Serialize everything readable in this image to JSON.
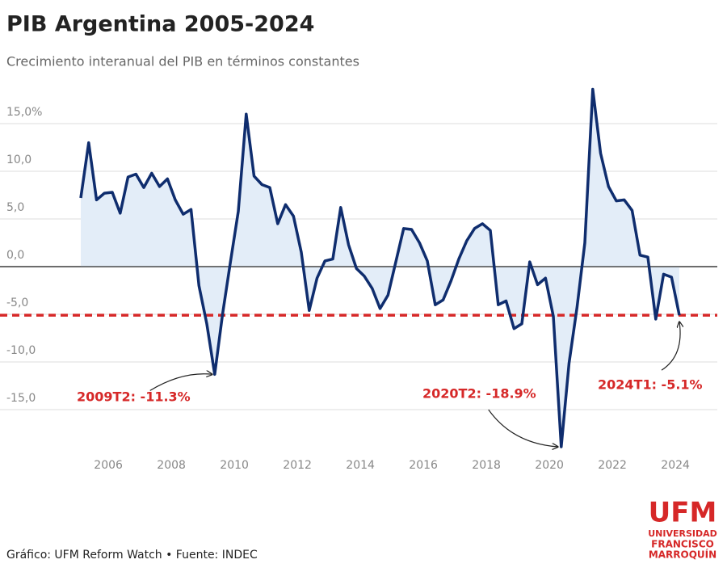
{
  "chart_data": {
    "type": "area-line",
    "title": "PIB Argentina 2005-2024",
    "subtitle": "Crecimiento interanual del PIB en términos constantes",
    "source": "Gráfico: UFM Reform Watch • Fuente: INDEC",
    "logo": {
      "name": "UFM",
      "lines": [
        "UNIVERSIDAD",
        "FRANCISCO",
        "MARROQUÍN"
      ]
    },
    "x": [
      2005.125,
      2005.375,
      2005.625,
      2005.875,
      2006.125,
      2006.375,
      2006.625,
      2006.875,
      2007.125,
      2007.375,
      2007.625,
      2007.875,
      2008.125,
      2008.375,
      2008.625,
      2008.875,
      2009.125,
      2009.375,
      2009.625,
      2009.875,
      2010.125,
      2010.375,
      2010.625,
      2010.875,
      2011.125,
      2011.375,
      2011.625,
      2011.875,
      2012.125,
      2012.375,
      2012.625,
      2012.875,
      2013.125,
      2013.375,
      2013.625,
      2013.875,
      2014.125,
      2014.375,
      2014.625,
      2014.875,
      2015.125,
      2015.375,
      2015.625,
      2015.875,
      2016.125,
      2016.375,
      2016.625,
      2016.875,
      2017.125,
      2017.375,
      2017.625,
      2017.875,
      2018.125,
      2018.375,
      2018.625,
      2018.875,
      2019.125,
      2019.375,
      2019.625,
      2019.875,
      2020.125,
      2020.375,
      2020.625,
      2020.875,
      2021.125,
      2021.375,
      2021.625,
      2021.875,
      2022.125,
      2022.375,
      2022.625,
      2022.875,
      2023.125,
      2023.375,
      2023.625,
      2023.875,
      2024.125
    ],
    "series": [
      {
        "color": "#0f2d6e",
        "fill": "#e3edf8",
        "values": [
          7.2,
          13.0,
          7.0,
          7.7,
          7.8,
          5.6,
          9.4,
          9.7,
          8.3,
          9.8,
          8.4,
          9.2,
          7.0,
          5.5,
          6.0,
          -2.0,
          -6.0,
          -11.3,
          -5.0,
          0.5,
          5.8,
          16.0,
          9.5,
          8.6,
          8.3,
          4.5,
          6.5,
          5.3,
          1.5,
          -4.6,
          -1.2,
          0.6,
          0.8,
          6.2,
          2.3,
          -0.2,
          -1.0,
          -2.3,
          -4.4,
          -3.0,
          0.5,
          4.0,
          3.9,
          2.5,
          0.6,
          -4.0,
          -3.5,
          -1.5,
          0.8,
          2.7,
          4.0,
          4.5,
          3.8,
          -4.0,
          -3.6,
          -6.5,
          -6.0,
          0.5,
          -1.9,
          -1.2,
          -5.2,
          -18.9,
          -10.1,
          -4.3,
          2.5,
          18.6,
          11.9,
          8.4,
          6.9,
          7.0,
          5.9,
          1.2,
          1.0,
          -5.5,
          -0.8,
          -1.1,
          -5.1
        ]
      }
    ],
    "xlim": [
      2003.125,
      2025.125
    ],
    "xticks": [
      2006,
      2008,
      2010,
      2012,
      2014,
      2016,
      2018,
      2020,
      2022,
      2024
    ],
    "ylim": [
      -20,
      20
    ],
    "yticks": [
      {
        "value": 15,
        "label": "15,0%"
      },
      {
        "value": 10,
        "label": "10,0"
      },
      {
        "value": 5,
        "label": "5,0"
      },
      {
        "value": 0,
        "label": "0,0"
      },
      {
        "value": -5,
        "label": "-5,0"
      },
      {
        "value": -10,
        "label": "-10,0"
      },
      {
        "value": -15,
        "label": "-15,0"
      }
    ],
    "grid": true,
    "reference_line": {
      "value": -5.1,
      "color": "#d62828"
    },
    "annotations": [
      {
        "text": "2009T2: -11.3%",
        "point": 17
      },
      {
        "text": "2020T2: -18.9%",
        "point": 61
      },
      {
        "text": "2024T1: -5.1%",
        "point": 76
      }
    ]
  }
}
